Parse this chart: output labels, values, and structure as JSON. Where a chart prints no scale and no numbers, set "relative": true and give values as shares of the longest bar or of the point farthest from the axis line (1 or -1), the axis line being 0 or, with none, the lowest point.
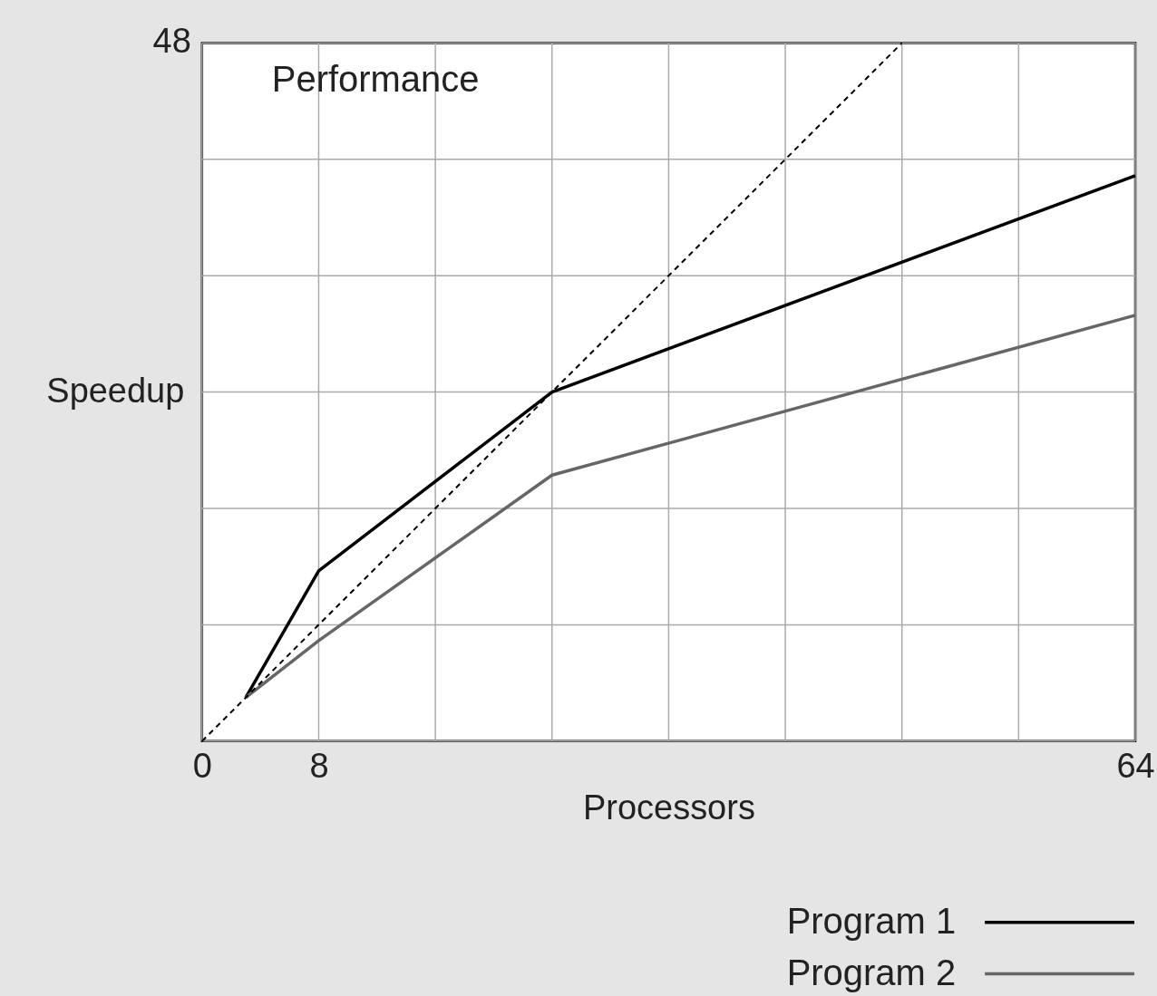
{
  "chart_data": {
    "type": "line",
    "title": "Performance",
    "xlabel": "Processors",
    "ylabel": "Speedup",
    "relative": true,
    "annotations": [
      "48"
    ],
    "xlim": [
      0,
      64
    ],
    "xticks": [
      0,
      8,
      {
        "value": 16,
        "label": null
      },
      {
        "value": 24,
        "label": null
      },
      {
        "value": 32,
        "label": null
      },
      {
        "value": 40,
        "label": null
      },
      {
        "value": 48,
        "label": null
      },
      {
        "value": 56,
        "label": null
      },
      64
    ],
    "grid": true,
    "legend": "bottom right",
    "marker": "none",
    "series": [
      {
        "name": "Program 1",
        "color": "#000000",
        "x": [
          3,
          8,
          24,
          64
        ],
        "values": [
          0.0625,
          0.244,
          0.5,
          0.81
        ],
        "line_style": "solid"
      },
      {
        "name": "Program 2",
        "color": "#666666",
        "x": [
          3,
          8,
          24,
          64
        ],
        "values": [
          0.0625,
          0.144,
          0.381,
          0.61
        ],
        "line_style": "solid"
      },
      {
        "color": "#000000",
        "x": [
          0,
          48
        ],
        "values": [
          0,
          1
        ],
        "line_style": "dashed"
      }
    ]
  }
}
